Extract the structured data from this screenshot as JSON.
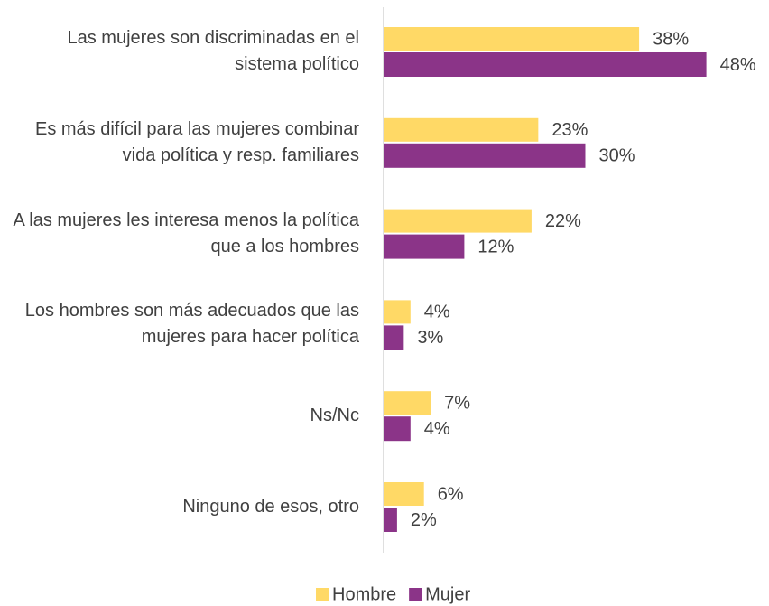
{
  "chart_data": {
    "type": "bar",
    "orientation": "horizontal",
    "categories": [
      "Las mujeres son discriminadas en el sistema político",
      "Es más difícil para las mujeres combinar vida política y resp. familiares",
      "A las mujeres les interesa menos la política que a los hombres",
      "Los hombres son más adecuados que las mujeres para hacer política",
      "Ns/Nc",
      "Ninguno de esos, otro"
    ],
    "series": [
      {
        "name": "Hombre",
        "color": "#FFD966",
        "values": [
          38,
          23,
          22,
          4,
          7,
          6
        ],
        "value_labels": [
          "38%",
          "23%",
          "22%",
          "4%",
          "7%",
          "6%"
        ]
      },
      {
        "name": "Mujer",
        "color": "#8B3488",
        "values": [
          48,
          30,
          12,
          3,
          4,
          2
        ],
        "value_labels": [
          "48%",
          "30%",
          "12%",
          "3%",
          "4%",
          "2%"
        ]
      }
    ],
    "xlim": [
      0,
      50
    ],
    "legend": "bottom"
  }
}
